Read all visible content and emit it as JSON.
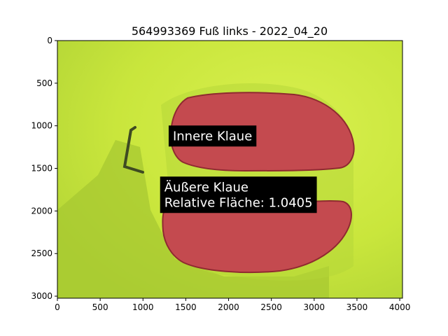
{
  "chart_data": {
    "type": "image",
    "title": "564993369 Fuß links - 2022_04_20",
    "xlabel": "",
    "ylabel": "",
    "xlim": [
      0,
      4032
    ],
    "ylim": [
      3024,
      0
    ],
    "xticks": [
      0,
      500,
      1000,
      1500,
      2000,
      2500,
      3000,
      3500,
      4000
    ],
    "yticks": [
      0,
      500,
      1000,
      1500,
      2000,
      2500,
      3000
    ],
    "xtick_labels": [
      "0",
      "500",
      "1000",
      "1500",
      "2000",
      "2500",
      "3000",
      "3500",
      "4000"
    ],
    "ytick_labels": [
      "0",
      "500",
      "1000",
      "1500",
      "2000",
      "2500",
      "3000"
    ],
    "grid": false,
    "colors": {
      "background": "#c6e437",
      "background_light": "#d7ef52",
      "background_shadow": "#9fc231",
      "region": "#c44a4f",
      "region_dark": "#8f2a30",
      "annotation_box": "#000000",
      "annotation_text": "#ffffff"
    },
    "annotations": [
      {
        "id": "inner",
        "lines": [
          "Innere Klaue"
        ],
        "x": 1300,
        "y": 1120
      },
      {
        "id": "outer",
        "lines": [
          "Äußere Klaue",
          "Relative Fläche: 1.0405"
        ],
        "x": 1200,
        "y": 1810
      }
    ]
  }
}
